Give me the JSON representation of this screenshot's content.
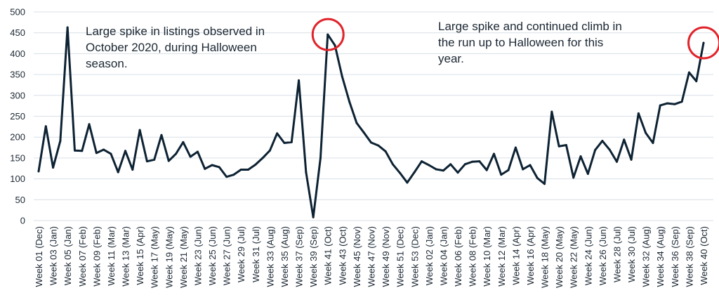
{
  "chart_data": {
    "type": "line",
    "ylim": [
      0,
      500
    ],
    "yticks": [
      0,
      50,
      100,
      150,
      200,
      250,
      300,
      350,
      400,
      450,
      500
    ],
    "grid": true,
    "line_color": "#0d2233",
    "highlight_color": "#e0242b",
    "x": [
      "Week 01 (Dec)",
      "",
      "Week 03 (Jan)",
      "",
      "Week 05 (Jan)",
      "",
      "Week 07 (Feb)",
      "",
      "Week 09 (Feb)",
      "",
      "Week 11 (Mar)",
      "",
      "Week 13 (Mar)",
      "",
      "Week 15 (Apr)",
      "",
      "Week 17 (May)",
      "",
      "Week 19 (May)",
      "",
      "Week 21 (May)",
      "",
      "Week 23 (Jun)",
      "",
      "Week 25 (Jun)",
      "",
      "Week 27 (Jun)",
      "",
      "Week 29 (Jul)",
      "",
      "Week 31 (Jul)",
      "",
      "Week 33 (Aug)",
      "",
      "Week 35 (Aug)",
      "",
      "Week 37 (Sep)",
      "",
      "Week 39 (Sep)",
      "",
      "Week 41 (Oct)",
      "",
      "Week 43 (Oct)",
      "",
      "Week 45 (Nov)",
      "",
      "Week 47 (Nov)",
      "",
      "Week 49 (Nov)",
      "",
      "Week 51 (Dec)",
      "",
      "Week 53 (Dec)",
      "",
      "Week 02 (Jan)",
      "",
      "Week 04 (Jan)",
      "",
      "Week 06 (Feb)",
      "",
      "Week 08 (Feb)",
      "",
      "Week 10 (Mar)",
      "",
      "Week 12 (Mar)",
      "",
      "Week 14 (Apr)",
      "",
      "Week 16 (Apr)",
      "",
      "Week 18 (May)",
      "",
      "Week 20 (May)",
      "",
      "Week 22 (May)",
      "",
      "Week 24 (Jun)",
      "",
      "Week 26 (Jun)",
      "",
      "Week 28 (Jul)",
      "",
      "Week 30 (Jul)",
      "",
      "Week 32 (Aug)",
      "",
      "Week 34 (Aug)",
      "",
      "Week 36 (Sep)",
      "",
      "Week 38 (Sep)",
      "",
      "Week 40 (Oct)"
    ],
    "values": [
      118,
      226,
      127,
      191,
      463,
      168,
      167,
      231,
      162,
      170,
      160,
      116,
      167,
      122,
      217,
      142,
      146,
      205,
      143,
      160,
      188,
      153,
      165,
      124,
      133,
      128,
      105,
      110,
      122,
      122,
      134,
      150,
      168,
      209,
      186,
      188,
      336,
      116,
      8,
      150,
      446,
      420,
      345,
      285,
      234,
      211,
      187,
      180,
      166,
      135,
      114,
      91,
      116,
      142,
      133,
      123,
      120,
      135,
      115,
      135,
      141,
      142,
      121,
      160,
      110,
      121,
      175,
      123,
      133,
      102,
      88,
      261,
      178,
      181,
      103,
      154,
      112,
      169,
      191,
      170,
      141,
      194,
      146,
      257,
      210,
      186,
      276,
      281,
      279,
      285,
      355,
      334,
      426
    ],
    "highlight_indices": [
      40,
      92
    ],
    "annotations": [
      "Large spike in listings observed in October 2020, during Halloween season.",
      "Large spike and continued climb in the run up to Halloween for this year."
    ]
  }
}
